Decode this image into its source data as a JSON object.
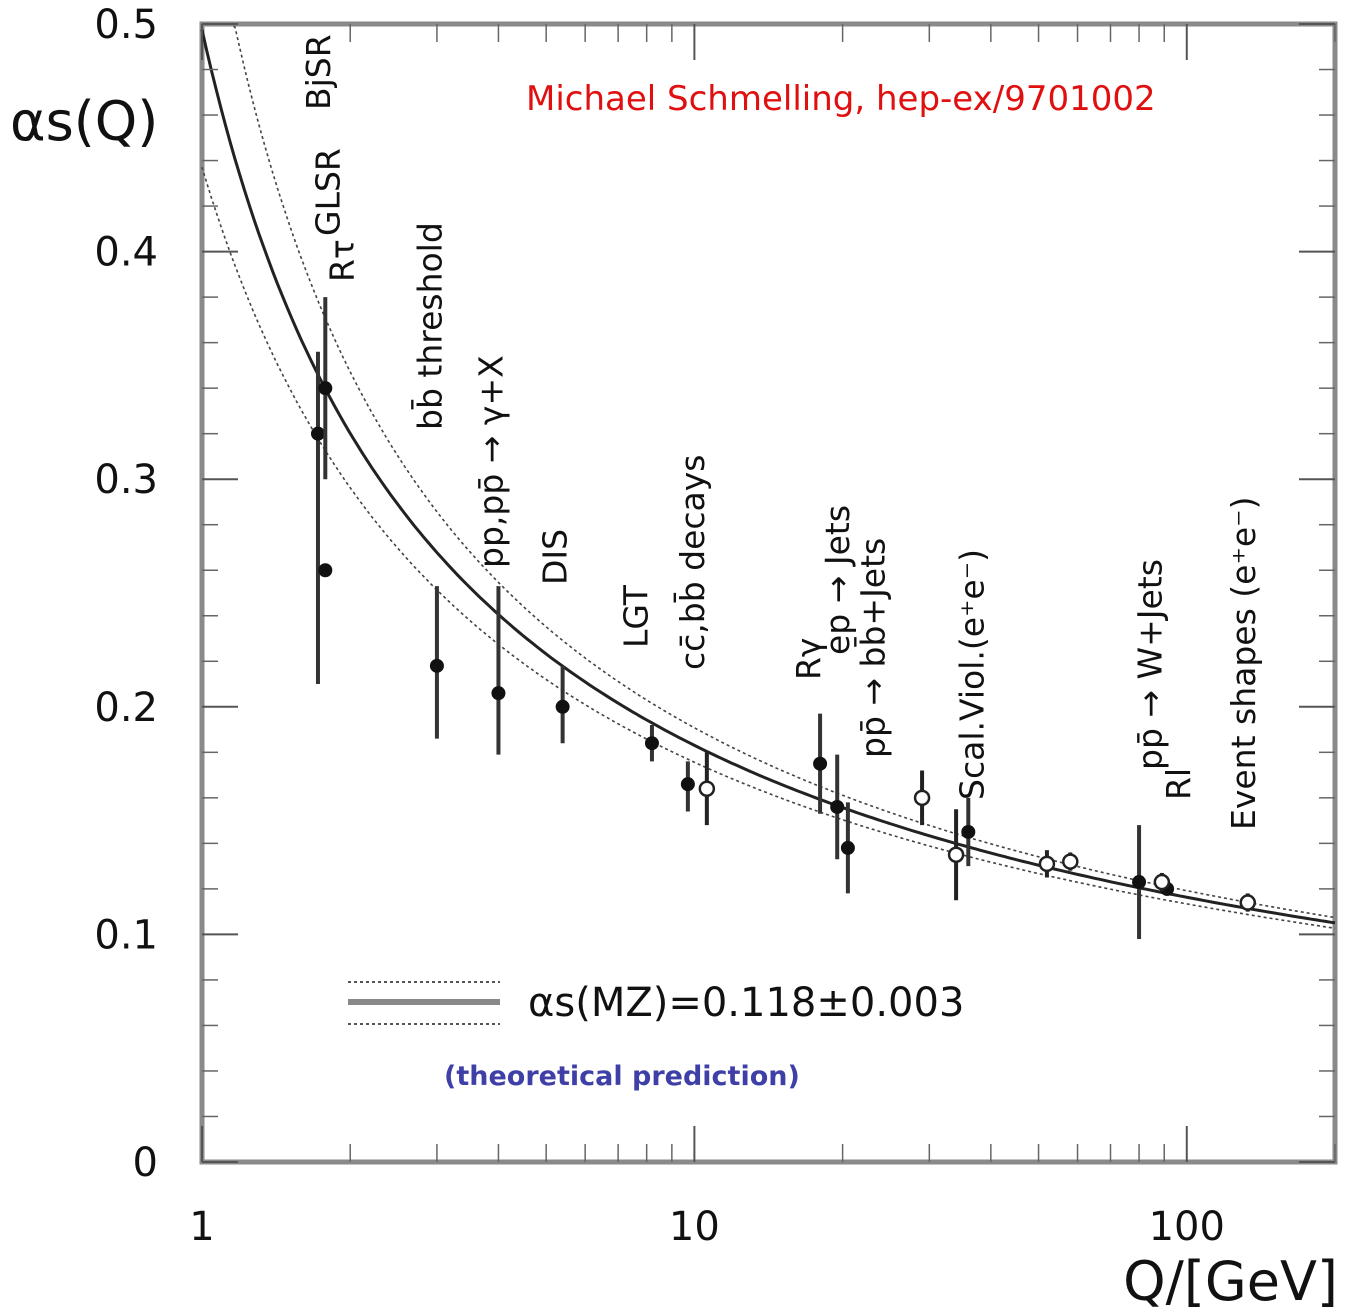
{
  "chart_data": {
    "type": "scatter",
    "title": "",
    "xlabel": "Q/[GeV]",
    "ylabel": "αs(Q)",
    "x_scale": "log",
    "xlim": [
      1,
      200
    ],
    "ylim": [
      0,
      0.5
    ],
    "x_ticks": [
      {
        "value": 1,
        "label": "1"
      },
      {
        "value": 10,
        "label": "10"
      },
      {
        "value": 100,
        "label": "100"
      }
    ],
    "y_ticks": [
      {
        "value": 0,
        "label": "0"
      },
      {
        "value": 0.1,
        "label": "0.1"
      },
      {
        "value": 0.2,
        "label": "0.2"
      },
      {
        "value": 0.3,
        "label": "0.3"
      },
      {
        "value": 0.4,
        "label": "0.4"
      },
      {
        "value": 0.5,
        "label": "0.5"
      }
    ],
    "grid": false,
    "series": [
      {
        "marker": "filled-circle",
        "points": [
          {
            "x": 1.72,
            "y": 0.32,
            "err_lo": 0.11,
            "err_hi": 0.036
          },
          {
            "x": 1.78,
            "y": 0.26,
            "err_lo": 0.0,
            "err_hi": 0.0
          },
          {
            "x": 1.78,
            "y": 0.34,
            "err_lo": 0.04,
            "err_hi": 0.04
          },
          {
            "x": 3.0,
            "y": 0.218,
            "err_lo": 0.032,
            "err_hi": 0.035
          },
          {
            "x": 4.0,
            "y": 0.206,
            "err_lo": 0.027,
            "err_hi": 0.047
          },
          {
            "x": 5.4,
            "y": 0.2,
            "err_lo": 0.016,
            "err_hi": 0.018
          },
          {
            "x": 8.2,
            "y": 0.184,
            "err_lo": 0.008,
            "err_hi": 0.008
          },
          {
            "x": 9.7,
            "y": 0.166,
            "err_lo": 0.012,
            "err_hi": 0.01
          },
          {
            "x": 18.0,
            "y": 0.175,
            "err_lo": 0.022,
            "err_hi": 0.022
          },
          {
            "x": 19.5,
            "y": 0.156,
            "err_lo": 0.023,
            "err_hi": 0.023
          },
          {
            "x": 20.5,
            "y": 0.138,
            "err_lo": 0.02,
            "err_hi": 0.02
          },
          {
            "x": 36.0,
            "y": 0.145,
            "err_lo": 0.015,
            "err_hi": 0.015
          },
          {
            "x": 80.0,
            "y": 0.123,
            "err_lo": 0.025,
            "err_hi": 0.025
          },
          {
            "x": 91.2,
            "y": 0.12,
            "err_lo": 0.003,
            "err_hi": 0.003
          }
        ]
      },
      {
        "marker": "open-circle",
        "points": [
          {
            "x": 10.6,
            "y": 0.164,
            "err_lo": 0.016,
            "err_hi": 0.016
          },
          {
            "x": 29.0,
            "y": 0.16,
            "err_lo": 0.012,
            "err_hi": 0.012
          },
          {
            "x": 34.0,
            "y": 0.135,
            "err_lo": 0.02,
            "err_hi": 0.02
          },
          {
            "x": 52.0,
            "y": 0.131,
            "err_lo": 0.006,
            "err_hi": 0.006
          },
          {
            "x": 58.0,
            "y": 0.132,
            "err_lo": 0.004,
            "err_hi": 0.004
          },
          {
            "x": 89.0,
            "y": 0.123,
            "err_lo": 0.004,
            "err_hi": 0.004
          },
          {
            "x": 133.0,
            "y": 0.114,
            "err_lo": 0.004,
            "err_hi": 0.004
          }
        ]
      }
    ],
    "curves": [
      {
        "style": "solid",
        "as_mz": 0.118
      },
      {
        "style": "dotted",
        "as_mz": 0.115
      },
      {
        "style": "dotted",
        "as_mz": 0.121
      }
    ],
    "measurement_labels": [
      {
        "text": "BjSR",
        "x": 1.72
      },
      {
        "text": "GLSR",
        "x": 1.8
      },
      {
        "text": "Rτ",
        "x": 1.92
      },
      {
        "text": "bb̄ threshold",
        "x": 2.9
      },
      {
        "text": "pp,pp̄ → γ+X",
        "x": 3.85
      },
      {
        "text": "DIS",
        "x": 5.2
      },
      {
        "text": "LGT",
        "x": 7.6
      },
      {
        "text": "cc̄,bb̄ decays",
        "x": 9.9
      },
      {
        "text": "Rγ",
        "x": 17.0
      },
      {
        "text": "ep → Jets",
        "x": 19.5
      },
      {
        "text": "pp̄ → bb̄+Jets",
        "x": 23.0
      },
      {
        "text": "Scal.Viol.(e⁺e⁻)",
        "x": 36.5
      },
      {
        "text": "pp̄ → W+Jets",
        "x": 84.0
      },
      {
        "text": "Rl",
        "x": 96.0
      },
      {
        "text": "Event shapes (e⁺e⁻)",
        "x": 130.0
      }
    ],
    "legend": {
      "label": "αs(MZ)=0.118±0.003",
      "note": "(theoretical prediction)",
      "position": "bottom-left"
    },
    "annotations": [
      {
        "text": "Michael Schmelling, hep-ex/9701002",
        "color": "#e01010",
        "position": "top-right"
      }
    ]
  }
}
